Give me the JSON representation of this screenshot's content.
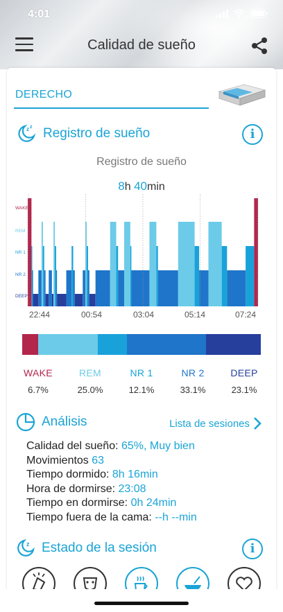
{
  "status": {
    "time": "4:01"
  },
  "nav": {
    "title": "Calidad de sueño"
  },
  "side": {
    "label": "DERECHO"
  },
  "sleep_log": {
    "section_title": "Registro de sueño",
    "chart_title": "Registro de sueño",
    "total_hours": "8",
    "hours_unit": "h",
    "total_minutes": "40",
    "minutes_unit": "min"
  },
  "chart_data": {
    "type": "bar",
    "stages": [
      "WAKE",
      "REM",
      "NR 1",
      "NR 2",
      "DEEP"
    ],
    "x_ticks": [
      "22:44",
      "00:54",
      "03:04",
      "05:14",
      "07:24"
    ],
    "x_range": [
      "22:44",
      "07:24"
    ],
    "segments": [
      {
        "start": 0,
        "end": 0.14,
        "stage": "WAKE"
      },
      {
        "start": 0.14,
        "end": 0.17,
        "stage": "NR 1"
      },
      {
        "start": 0.17,
        "end": 0.2,
        "stage": "NR 2"
      },
      {
        "start": 0.2,
        "end": 0.4,
        "stage": "DEEP"
      },
      {
        "start": 0.4,
        "end": 0.52,
        "stage": "NR 2"
      },
      {
        "start": 0.52,
        "end": 0.57,
        "stage": "REM"
      },
      {
        "start": 0.57,
        "end": 0.62,
        "stage": "NR 1"
      },
      {
        "start": 0.62,
        "end": 0.67,
        "stage": "NR 2"
      },
      {
        "start": 0.67,
        "end": 0.79,
        "stage": "DEEP"
      },
      {
        "start": 0.79,
        "end": 0.91,
        "stage": "NR 2"
      },
      {
        "start": 0.91,
        "end": 0.97,
        "stage": "DEEP"
      },
      {
        "start": 0.97,
        "end": 1.02,
        "stage": "REM"
      },
      {
        "start": 1.02,
        "end": 1.07,
        "stage": "NR 1"
      },
      {
        "start": 1.07,
        "end": 1.1,
        "stage": "NR 2"
      },
      {
        "start": 1.1,
        "end": 1.45,
        "stage": "DEEP"
      },
      {
        "start": 1.45,
        "end": 1.65,
        "stage": "NR 2"
      },
      {
        "start": 1.65,
        "end": 1.71,
        "stage": "NR 1"
      },
      {
        "start": 1.71,
        "end": 1.77,
        "stage": "NR 2"
      },
      {
        "start": 1.77,
        "end": 2.07,
        "stage": "DEEP"
      },
      {
        "start": 2.07,
        "end": 2.17,
        "stage": "NR 2"
      },
      {
        "start": 2.17,
        "end": 2.22,
        "stage": "REM"
      },
      {
        "start": 2.22,
        "end": 2.27,
        "stage": "NR 1"
      },
      {
        "start": 2.27,
        "end": 2.32,
        "stage": "NR 2"
      },
      {
        "start": 2.32,
        "end": 2.55,
        "stage": "DEEP"
      },
      {
        "start": 2.55,
        "end": 3.1,
        "stage": "NR 2"
      },
      {
        "start": 3.1,
        "end": 3.33,
        "stage": "REM"
      },
      {
        "start": 3.33,
        "end": 3.4,
        "stage": "NR 1"
      },
      {
        "start": 3.4,
        "end": 3.63,
        "stage": "NR 2"
      },
      {
        "start": 3.63,
        "end": 3.86,
        "stage": "REM"
      },
      {
        "start": 3.86,
        "end": 3.9,
        "stage": "NR 1"
      },
      {
        "start": 3.9,
        "end": 4.58,
        "stage": "NR 2"
      },
      {
        "start": 4.58,
        "end": 4.84,
        "stage": "REM"
      },
      {
        "start": 4.84,
        "end": 4.9,
        "stage": "NR 1"
      },
      {
        "start": 4.9,
        "end": 5.66,
        "stage": "NR 2"
      },
      {
        "start": 5.66,
        "end": 6.28,
        "stage": "REM"
      },
      {
        "start": 6.28,
        "end": 6.45,
        "stage": "NR 1"
      },
      {
        "start": 6.45,
        "end": 6.8,
        "stage": "NR 2"
      },
      {
        "start": 6.8,
        "end": 7.3,
        "stage": "REM"
      },
      {
        "start": 7.3,
        "end": 7.5,
        "stage": "NR 1"
      },
      {
        "start": 7.5,
        "end": 8.2,
        "stage": "NR 2"
      },
      {
        "start": 8.2,
        "end": 8.52,
        "stage": "NR 1"
      },
      {
        "start": 8.52,
        "end": 8.67,
        "stage": "WAKE"
      }
    ],
    "distribution": [
      {
        "stage": "WAKE",
        "percent": 6.7
      },
      {
        "stage": "REM",
        "percent": 25.0
      },
      {
        "stage": "NR 1",
        "percent": 12.1
      },
      {
        "stage": "NR 2",
        "percent": 33.1
      },
      {
        "stage": "DEEP",
        "percent": 23.1
      }
    ],
    "colors": {
      "WAKE": "#b3264b",
      "REM": "#6ccbe9",
      "NR 1": "#19a2da",
      "NR 2": "#1f75c9",
      "DEEP": "#263f9d"
    }
  },
  "legend": [
    {
      "name": "WAKE",
      "pct": "6.7%"
    },
    {
      "name": "REM",
      "pct": "25.0%"
    },
    {
      "name": "NR 1",
      "pct": "12.1%"
    },
    {
      "name": "NR 2",
      "pct": "33.1%"
    },
    {
      "name": "DEEP",
      "pct": "23.1%"
    }
  ],
  "analysis": {
    "section_title": "Análisis",
    "sessions_link": "Lista de sesiones",
    "rows": [
      {
        "label": "Calidad del sueño:",
        "value": "65%, Muy bien"
      },
      {
        "label": "Movimientos",
        "value": "63"
      },
      {
        "label": "Tiempo dormido:",
        "value": "8h 16min"
      },
      {
        "label": "Hora de dormirse:",
        "value": "23:08"
      },
      {
        "label": "Tiempo en dormirse:",
        "value": "0h 24min"
      },
      {
        "label": "Tiempo fuera de la cama:",
        "value": "--h --min"
      }
    ]
  },
  "session_state": {
    "section_title": "Estado de la sesión",
    "icons": [
      "stress-icon",
      "mask-icon",
      "coffee-icon",
      "food-icon",
      "heart-icon"
    ]
  },
  "accent_color": "#1aa4d6"
}
